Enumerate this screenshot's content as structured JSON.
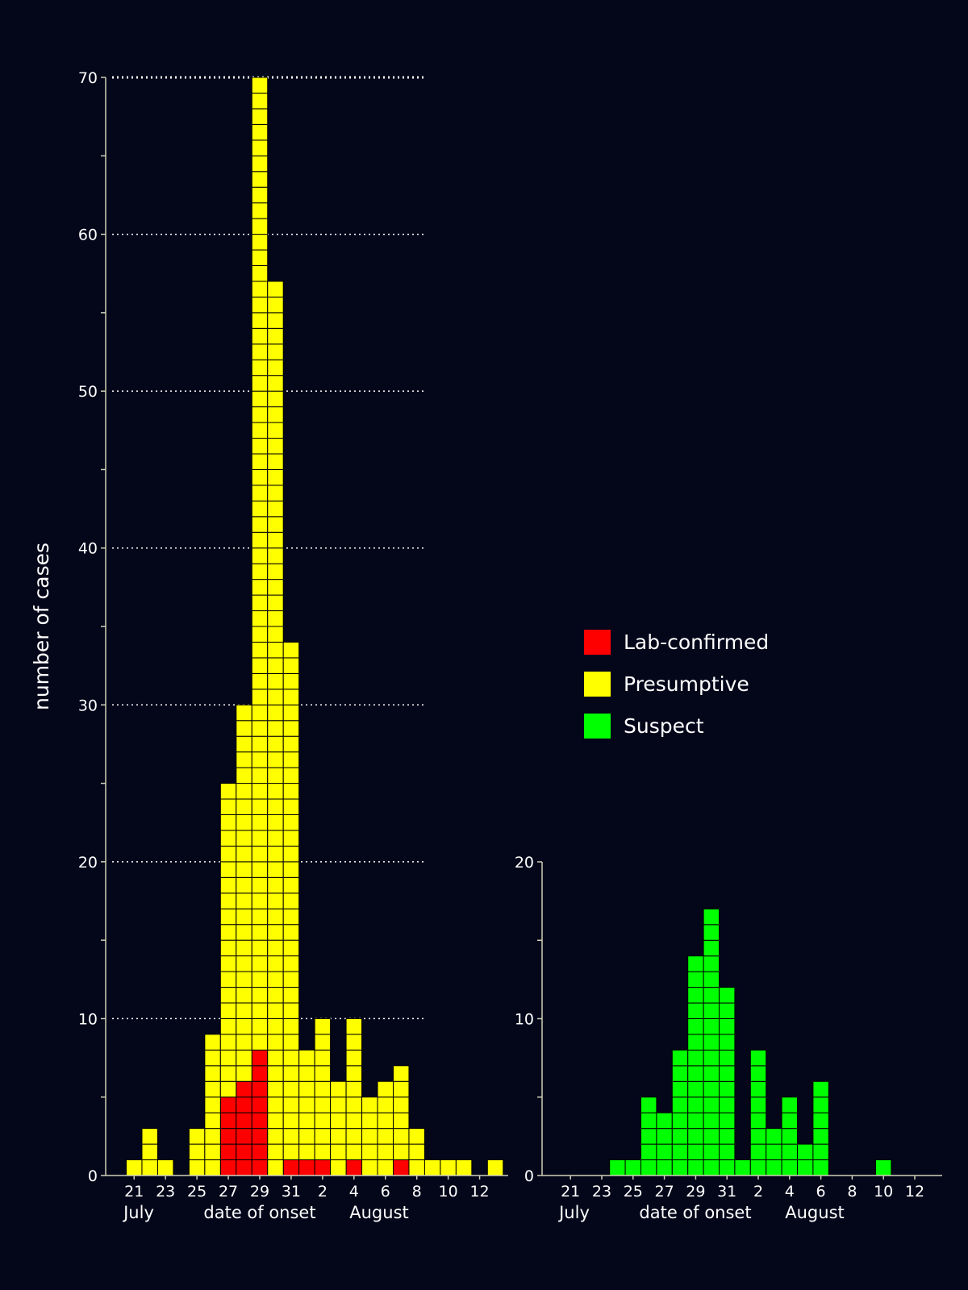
{
  "colors": {
    "background": "#04061a",
    "lab_confirmed": "#ff0000",
    "presumptive": "#ffff00",
    "suspect": "#00ff00",
    "axis": "#cfcfb8",
    "grid": "#ffffff"
  },
  "legend": [
    {
      "label": "Lab-confirmed",
      "color": "#ff0000"
    },
    {
      "label": "Presumptive",
      "color": "#ffff00"
    },
    {
      "label": "Suspect",
      "color": "#00ff00"
    }
  ],
  "ylabel": "number of cases",
  "chart_data": [
    {
      "type": "bar",
      "stacked": true,
      "xlabel": "date of onset",
      "x": [
        "Jul 21",
        "Jul 22",
        "Jul 23",
        "Jul 24",
        "Jul 25",
        "Jul 26",
        "Jul 27",
        "Jul 28",
        "Jul 29",
        "Jul 30",
        "Jul 31",
        "Aug 1",
        "Aug 2",
        "Aug 3",
        "Aug 4",
        "Aug 5",
        "Aug 6",
        "Aug 7",
        "Aug 8",
        "Aug 9",
        "Aug 10",
        "Aug 11",
        "Aug 12",
        "Aug 13"
      ],
      "x_tick_labels": [
        "21",
        "23",
        "25",
        "27",
        "29",
        "31",
        "2",
        "4",
        "6",
        "8",
        "10",
        "12"
      ],
      "month_labels": [
        "July",
        "August"
      ],
      "series": [
        {
          "name": "Lab-confirmed",
          "color": "#ff0000",
          "values": [
            0,
            0,
            0,
            0,
            0,
            0,
            5,
            6,
            8,
            0,
            1,
            1,
            1,
            0,
            1,
            0,
            0,
            1,
            0,
            0,
            0,
            0,
            0,
            0
          ]
        },
        {
          "name": "Presumptive",
          "color": "#ffff00",
          "values": [
            1,
            3,
            1,
            0,
            3,
            9,
            20,
            24,
            62,
            57,
            33,
            7,
            9,
            6,
            9,
            5,
            6,
            6,
            3,
            1,
            1,
            1,
            0,
            1
          ]
        }
      ],
      "yticks": [
        0,
        10,
        20,
        30,
        40,
        50,
        60,
        70
      ],
      "ylim": [
        0,
        70
      ],
      "grid": "dotted horizontal"
    },
    {
      "type": "bar",
      "xlabel": "date of onset",
      "x": [
        "Jul 21",
        "Jul 22",
        "Jul 23",
        "Jul 24",
        "Jul 25",
        "Jul 26",
        "Jul 27",
        "Jul 28",
        "Jul 29",
        "Jul 30",
        "Jul 31",
        "Aug 1",
        "Aug 2",
        "Aug 3",
        "Aug 4",
        "Aug 5",
        "Aug 6",
        "Aug 7",
        "Aug 8",
        "Aug 9",
        "Aug 10",
        "Aug 11",
        "Aug 12"
      ],
      "x_tick_labels": [
        "21",
        "23",
        "25",
        "27",
        "29",
        "31",
        "2",
        "4",
        "6",
        "8",
        "10",
        "12"
      ],
      "month_labels": [
        "July",
        "August"
      ],
      "series": [
        {
          "name": "Suspect",
          "color": "#00ff00",
          "values": [
            0,
            0,
            0,
            1,
            1,
            5,
            4,
            8,
            14,
            17,
            12,
            1,
            8,
            3,
            5,
            2,
            6,
            0,
            0,
            0,
            1,
            0,
            0
          ]
        }
      ],
      "yticks": [
        0,
        10,
        20
      ],
      "ylim": [
        0,
        20
      ],
      "grid": "none"
    }
  ]
}
